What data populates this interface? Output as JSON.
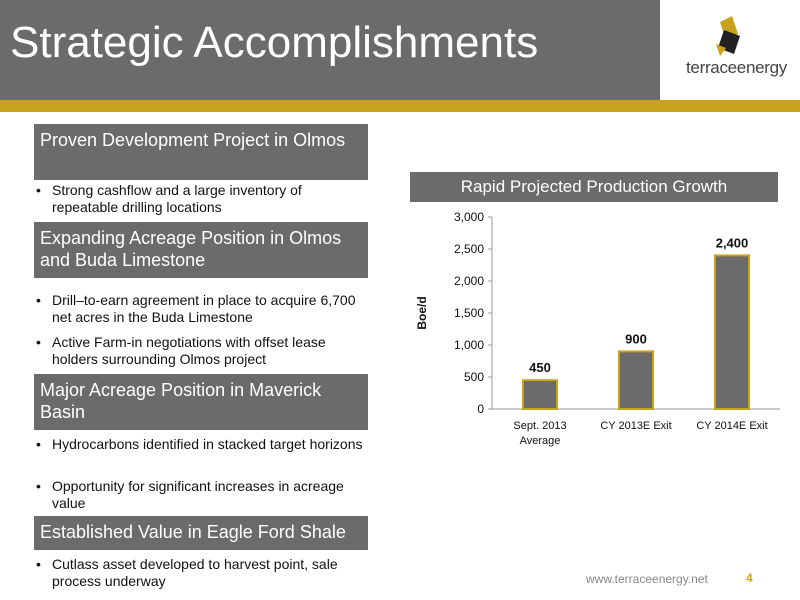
{
  "header": {
    "title": "Strategic Accomplishments"
  },
  "logo": {
    "text": "terraceenergy"
  },
  "sections": [
    {
      "heading": "Proven Development Project in Olmos",
      "bullets": [
        "Strong cashflow and a large inventory of repeatable drilling locations"
      ]
    },
    {
      "heading": "Expanding Acreage Position in Olmos and Buda Limestone",
      "bullets": [
        "Drill–to-earn agreement in place to acquire 6,700 net acres in the Buda Limestone",
        "Active Farm-in negotiations with offset lease holders surrounding Olmos project"
      ]
    },
    {
      "heading": "Major Acreage Position in Maverick Basin",
      "bullets": [
        "Hydrocarbons identified in stacked target horizons",
        "Opportunity for significant increases in acreage value"
      ]
    },
    {
      "heading": "Established Value in Eagle Ford Shale",
      "bullets": [
        "Cutlass asset developed to harvest point, sale process underway"
      ]
    }
  ],
  "chart_header": "Rapid Projected Production Growth",
  "chart_data": {
    "type": "bar",
    "categories": [
      "Sept. 2013 Average",
      "CY 2013E Exit",
      "CY 2014E Exit"
    ],
    "values": [
      450,
      900,
      2400
    ],
    "data_labels": [
      "450",
      "900",
      "2,400"
    ],
    "ylabel": "Boe/d",
    "ylim": [
      0,
      3000
    ],
    "yticks": [
      "0",
      "500",
      "1,000",
      "1,500",
      "2,000",
      "2,500",
      "3,000"
    ],
    "grid": false,
    "bar_color": "#6b6b6b",
    "bar_border": "#c8a21a"
  },
  "footer": {
    "url": "www.terraceenergy.net",
    "page": "4"
  },
  "colors": {
    "header": "#6b6b6b",
    "accent": "#c8a21a"
  }
}
